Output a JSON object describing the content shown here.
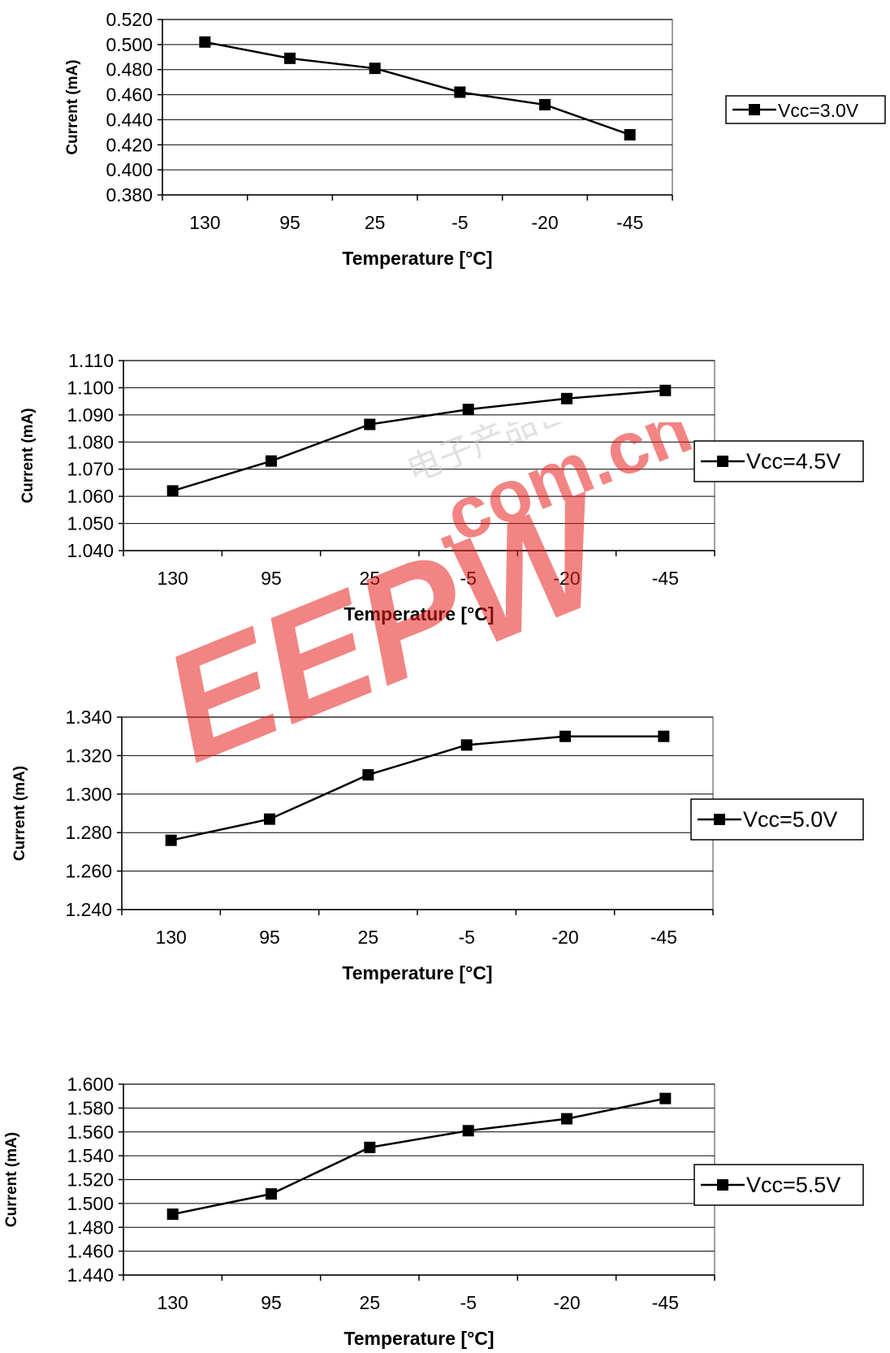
{
  "chart_data": [
    {
      "type": "line",
      "categories": [
        "130",
        "95",
        "25",
        "-5",
        "-20",
        "-45"
      ],
      "series": [
        {
          "name": "Vcc=3.0V",
          "values": [
            0.502,
            0.489,
            0.481,
            0.462,
            0.452,
            0.428
          ]
        }
      ],
      "yticks": [
        "0.380",
        "0.400",
        "0.420",
        "0.440",
        "0.460",
        "0.480",
        "0.500",
        "0.520"
      ],
      "ylim": [
        0.38,
        0.52
      ],
      "xlabel": "Temperature [°C]",
      "ylabel": "Current (mA)",
      "grid": true,
      "legend": "right"
    },
    {
      "type": "line",
      "categories": [
        "130",
        "95",
        "25",
        "-5",
        "-20",
        "-45"
      ],
      "series": [
        {
          "name": "Vcc=4.5V",
          "values": [
            1.062,
            1.073,
            1.0865,
            1.092,
            1.096,
            1.099
          ]
        }
      ],
      "yticks": [
        "1.040",
        "1.050",
        "1.060",
        "1.070",
        "1.080",
        "1.090",
        "1.100",
        "1.110"
      ],
      "ylim": [
        1.04,
        1.11
      ],
      "xlabel": "Temperature [°C]",
      "ylabel": "Current (mA)",
      "grid": true,
      "legend": "right"
    },
    {
      "type": "line",
      "categories": [
        "130",
        "95",
        "25",
        "-5",
        "-20",
        "-45"
      ],
      "series": [
        {
          "name": "Vcc=5.0V",
          "values": [
            1.276,
            1.287,
            1.31,
            1.3255,
            1.33,
            1.33
          ]
        }
      ],
      "yticks": [
        "1.240",
        "1.260",
        "1.280",
        "1.300",
        "1.320",
        "1.340"
      ],
      "ylim": [
        1.24,
        1.34
      ],
      "xlabel": "Temperature [°C]",
      "ylabel": "Current (mA)",
      "grid": true,
      "legend": "right"
    },
    {
      "type": "line",
      "categories": [
        "130",
        "95",
        "25",
        "-5",
        "-20",
        "-45"
      ],
      "series": [
        {
          "name": "Vcc=5.5V",
          "values": [
            1.491,
            1.508,
            1.547,
            1.561,
            1.571,
            1.588
          ]
        }
      ],
      "yticks": [
        "1.440",
        "1.460",
        "1.480",
        "1.500",
        "1.520",
        "1.540",
        "1.560",
        "1.580",
        "1.600"
      ],
      "ylim": [
        1.44,
        1.6
      ],
      "xlabel": "Temperature [°C]",
      "ylabel": "Current (mA)",
      "grid": true,
      "legend": "right"
    }
  ],
  "watermark": {
    "logo_text": "EEPW",
    "domain_text": ".com.cn",
    "cjk_text": "电子产品世界",
    "color": "#e8201f"
  },
  "colors": {
    "plot_bg": "#ffffff",
    "gridline": "#000000",
    "series_line": "#000000",
    "marker": "#000000"
  }
}
